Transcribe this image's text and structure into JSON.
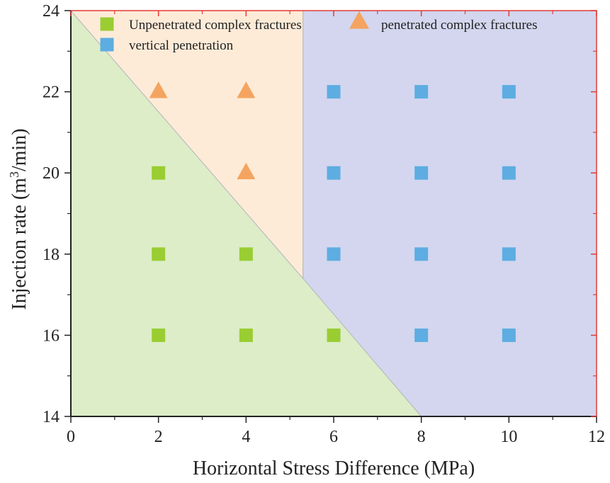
{
  "chart_data": {
    "type": "scatter",
    "title": "",
    "xlabel": "Horizontal Stress Difference (MPa)",
    "ylabel_parts": {
      "before": "Injection rate (m",
      "superscript": "3",
      "after": "/min)"
    },
    "xlim": [
      0,
      12
    ],
    "ylim": [
      14,
      24
    ],
    "x_ticks": [
      0,
      2,
      4,
      6,
      8,
      10,
      12
    ],
    "y_ticks": [
      14,
      16,
      18,
      20,
      22,
      24
    ],
    "legend_position": "top",
    "colors": {
      "green": "#9acd32",
      "orange": "#f4a460",
      "blue": "#5dade2",
      "green_region": "#dcedc8",
      "orange_region": "#fdebd8",
      "blue_region": "#d3d6ee",
      "frame": "#e53935",
      "axis": "#222222"
    },
    "regions": [
      {
        "name": "Unpenetrated complex fractures region",
        "color": "#dcedc8",
        "polygon": [
          [
            0,
            24
          ],
          [
            5.3,
            17.4
          ],
          [
            8,
            14
          ],
          [
            0,
            14
          ]
        ]
      },
      {
        "name": "penetrated complex fractures region",
        "color": "#fdebd8",
        "polygon": [
          [
            0,
            24
          ],
          [
            5.3,
            24
          ],
          [
            5.3,
            17.4
          ]
        ]
      },
      {
        "name": "vertical penetration region",
        "color": "#d3d6ee",
        "polygon": [
          [
            5.3,
            24
          ],
          [
            12,
            24
          ],
          [
            12,
            14
          ],
          [
            8,
            14
          ],
          [
            5.3,
            17.4
          ]
        ]
      }
    ],
    "series": [
      {
        "name": "Unpenetrated complex fractures",
        "marker": "square",
        "color": "#9acd32",
        "points": [
          [
            2,
            20
          ],
          [
            2,
            18
          ],
          [
            4,
            18
          ],
          [
            2,
            16
          ],
          [
            4,
            16
          ],
          [
            6,
            16
          ]
        ]
      },
      {
        "name": "penetrated complex fractures",
        "marker": "triangle",
        "color": "#f4a460",
        "points": [
          [
            2,
            22
          ],
          [
            4,
            22
          ],
          [
            4,
            20
          ]
        ]
      },
      {
        "name": "vertical penetration",
        "marker": "square",
        "color": "#5dade2",
        "points": [
          [
            6,
            22
          ],
          [
            8,
            22
          ],
          [
            10,
            22
          ],
          [
            6,
            20
          ],
          [
            8,
            20
          ],
          [
            10,
            20
          ],
          [
            6,
            18
          ],
          [
            8,
            18
          ],
          [
            10,
            18
          ],
          [
            8,
            16
          ],
          [
            10,
            16
          ]
        ]
      }
    ]
  }
}
